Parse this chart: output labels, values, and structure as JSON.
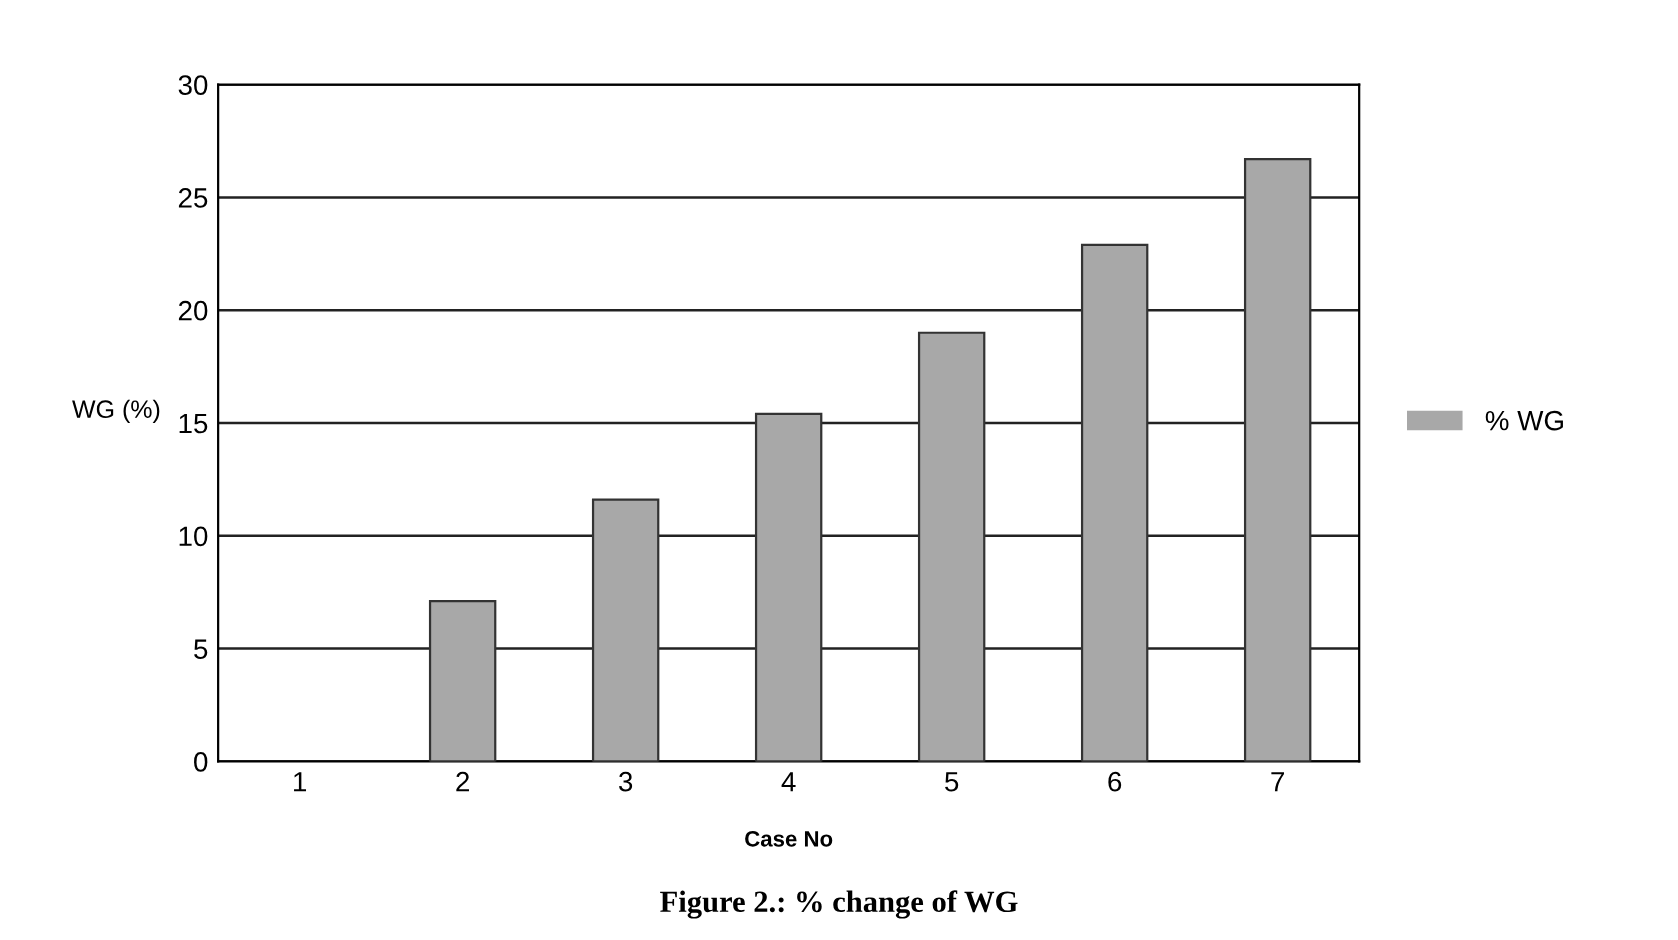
{
  "chart_data": {
    "type": "bar",
    "title": "Figure 2.: % change of WG",
    "xlabel": "Case No",
    "ylabel": "WG (%)",
    "categories": [
      "1",
      "2",
      "3",
      "4",
      "5",
      "6",
      "7"
    ],
    "series": [
      {
        "name": "% WG",
        "color": "#a8a8a8",
        "values": [
          0,
          7.1,
          11.6,
          15.4,
          19.0,
          22.9,
          26.7
        ]
      }
    ],
    "ylim": [
      0,
      30
    ],
    "yticks": [
      0,
      5,
      10,
      15,
      20,
      25,
      30
    ],
    "grid": "y",
    "legend": "right"
  }
}
